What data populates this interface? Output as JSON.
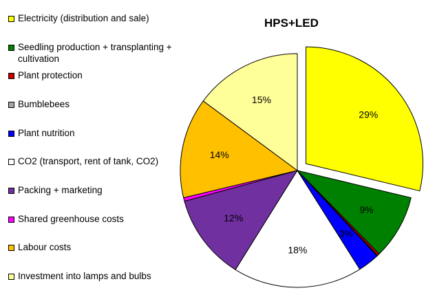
{
  "chart_data": {
    "type": "pie",
    "title": "HPS+LED",
    "legend_position": "left",
    "categories": [
      "Electricity (distribution and sale)",
      "Seedling production + transplanting + cultivation",
      "Plant protection",
      "Bumblebees",
      "Plant nutrition",
      "CO2 (transport, rent of tank, CO2)",
      "Packing + marketing",
      "Shared greenhouse costs",
      "Labour costs",
      "Investment into lamps and bulbs"
    ],
    "values": [
      29,
      9,
      0.3,
      0.1,
      3,
      18,
      12,
      0.5,
      14,
      15
    ],
    "data_labels": [
      "29%",
      "9%",
      "",
      "",
      "3%",
      "18%",
      "12%",
      "",
      "14%",
      "15%"
    ],
    "colors": [
      "#FFFF00",
      "#008000",
      "#CC0000",
      "#A6A6A6",
      "#0000FF",
      "#FFFFFF",
      "#7030A0",
      "#FF00FF",
      "#FFC000",
      "#FFFF99"
    ],
    "exploded": [
      true,
      false,
      false,
      false,
      false,
      false,
      false,
      false,
      false,
      false
    ]
  }
}
